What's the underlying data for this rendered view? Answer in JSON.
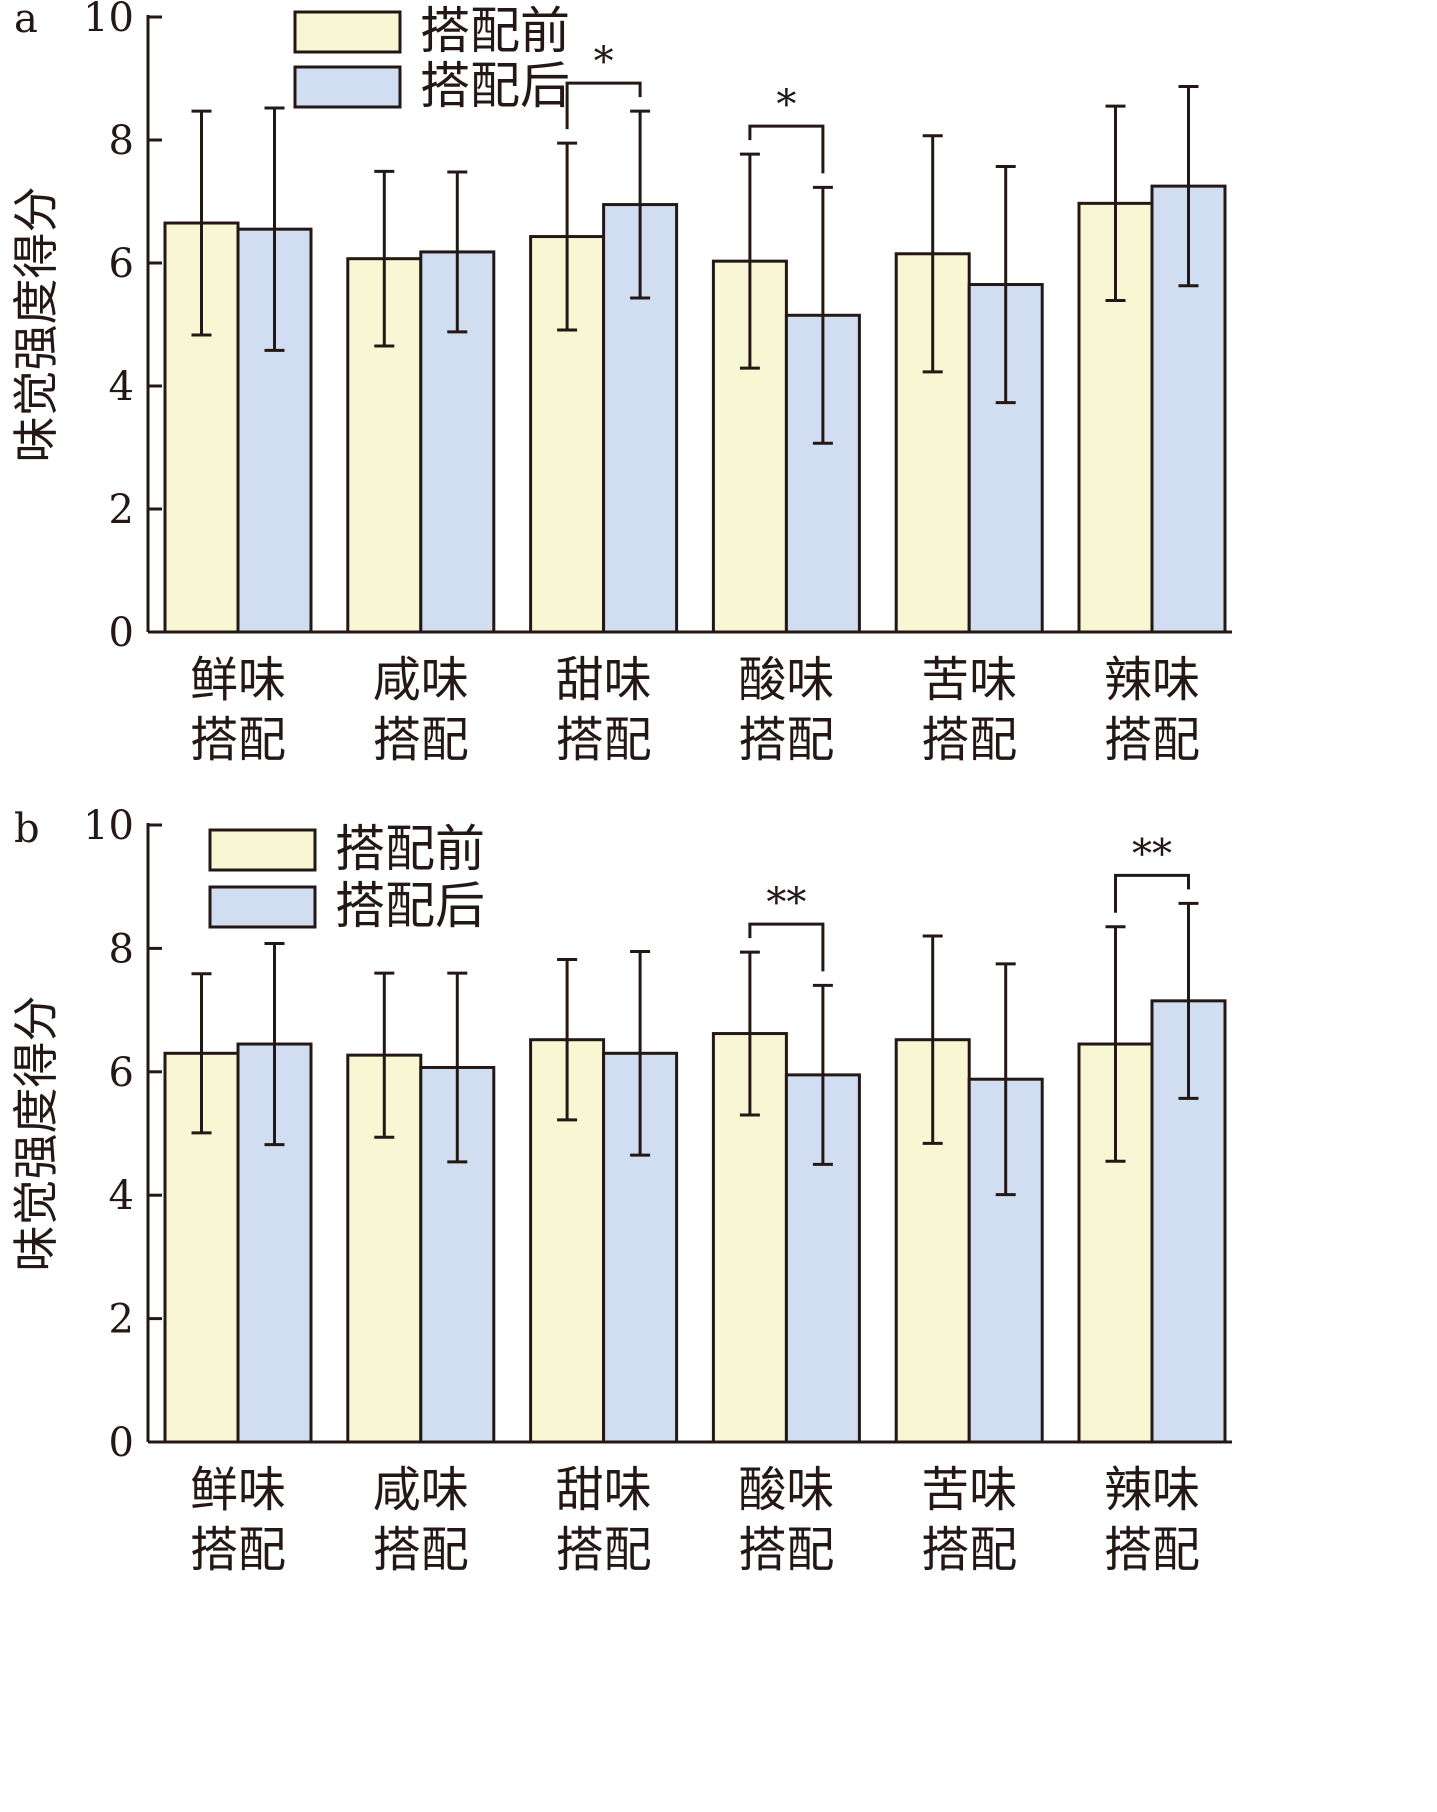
{
  "legend": [
    "搭配前",
    "搭配后"
  ],
  "colors": {
    "before": "#f9f6d3",
    "after": "#d1ddf0",
    "stroke": "#231815"
  },
  "chart_data": [
    {
      "type": "bar",
      "panel": "a",
      "ylabel": "味觉强度得分",
      "ylim": [
        0,
        10
      ],
      "yticks": [
        0,
        2,
        4,
        6,
        8,
        10
      ],
      "categories": [
        [
          "鲜味",
          "搭配"
        ],
        [
          "咸味",
          "搭配"
        ],
        [
          "甜味",
          "搭配"
        ],
        [
          "酸味",
          "搭配"
        ],
        [
          "苦味",
          "搭配"
        ],
        [
          "辣味",
          "搭配"
        ]
      ],
      "series": [
        {
          "name": "搭配前",
          "values": [
            6.65,
            6.07,
            6.43,
            6.03,
            6.15,
            6.97
          ],
          "errors": [
            1.82,
            1.42,
            1.52,
            1.74,
            1.92,
            1.58
          ]
        },
        {
          "name": "搭配后",
          "values": [
            6.55,
            6.18,
            6.95,
            5.15,
            5.65,
            7.25
          ],
          "errors": [
            1.97,
            1.3,
            1.52,
            2.08,
            1.92,
            1.62
          ]
        }
      ],
      "significance": [
        {
          "category": 2,
          "label": "*"
        },
        {
          "category": 3,
          "label": "*"
        }
      ]
    },
    {
      "type": "bar",
      "panel": "b",
      "ylabel": "味觉强度得分",
      "ylim": [
        0,
        10
      ],
      "yticks": [
        0,
        2,
        4,
        6,
        8,
        10
      ],
      "categories": [
        [
          "鲜味",
          "搭配"
        ],
        [
          "咸味",
          "搭配"
        ],
        [
          "甜味",
          "搭配"
        ],
        [
          "酸味",
          "搭配"
        ],
        [
          "苦味",
          "搭配"
        ],
        [
          "辣味",
          "搭配"
        ]
      ],
      "series": [
        {
          "name": "搭配前",
          "values": [
            6.3,
            6.27,
            6.52,
            6.62,
            6.52,
            6.45
          ],
          "errors": [
            1.29,
            1.33,
            1.3,
            1.32,
            1.68,
            1.9
          ]
        },
        {
          "name": "搭配后",
          "values": [
            6.45,
            6.07,
            6.3,
            5.95,
            5.88,
            7.15
          ],
          "errors": [
            1.63,
            1.53,
            1.65,
            1.45,
            1.87,
            1.58
          ]
        }
      ],
      "significance": [
        {
          "category": 3,
          "label": "**"
        },
        {
          "category": 5,
          "label": "**"
        }
      ]
    }
  ]
}
